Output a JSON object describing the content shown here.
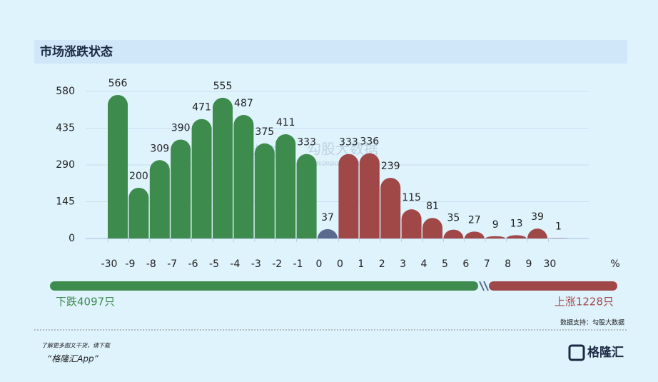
{
  "header": {
    "title": "市场涨跌状态"
  },
  "chart_data": {
    "type": "bar",
    "categories": [
      "-30",
      "-9",
      "-8",
      "-7",
      "-6",
      "-5",
      "-4",
      "-3",
      "-2",
      "-1",
      "0",
      "0",
      "1",
      "2",
      "3",
      "4",
      "5",
      "6",
      "7",
      "8",
      "9",
      "30"
    ],
    "values": [
      566,
      200,
      309,
      390,
      471,
      555,
      487,
      375,
      411,
      333,
      37,
      333,
      336,
      239,
      115,
      81,
      35,
      27,
      9,
      13,
      39,
      1
    ],
    "colors": [
      "#3d8b4d",
      "#3d8b4d",
      "#3d8b4d",
      "#3d8b4d",
      "#3d8b4d",
      "#3d8b4d",
      "#3d8b4d",
      "#3d8b4d",
      "#3d8b4d",
      "#3d8b4d",
      "#5a6a8e",
      "#a04848",
      "#a04848",
      "#a04848",
      "#a04848",
      "#a04848",
      "#a04848",
      "#a04848",
      "#a04848",
      "#a04848",
      "#a04848",
      "#a04848"
    ],
    "x_unit": "%",
    "ylim": [
      0,
      580
    ],
    "yticks": [
      0,
      145,
      290,
      435,
      580
    ],
    "grid": true
  },
  "summary": {
    "down": "下跌4097只",
    "up": "上涨1228只",
    "source": "数据支持：勾股大数据"
  },
  "watermark": {
    "brand": "格隆汇",
    "provider": "勾股大数据",
    "url": "www.gogudata.com"
  },
  "footer": {
    "line1": "了解更多图文干货，请下载",
    "line2": "“格隆汇App”",
    "logo": "格隆汇"
  }
}
